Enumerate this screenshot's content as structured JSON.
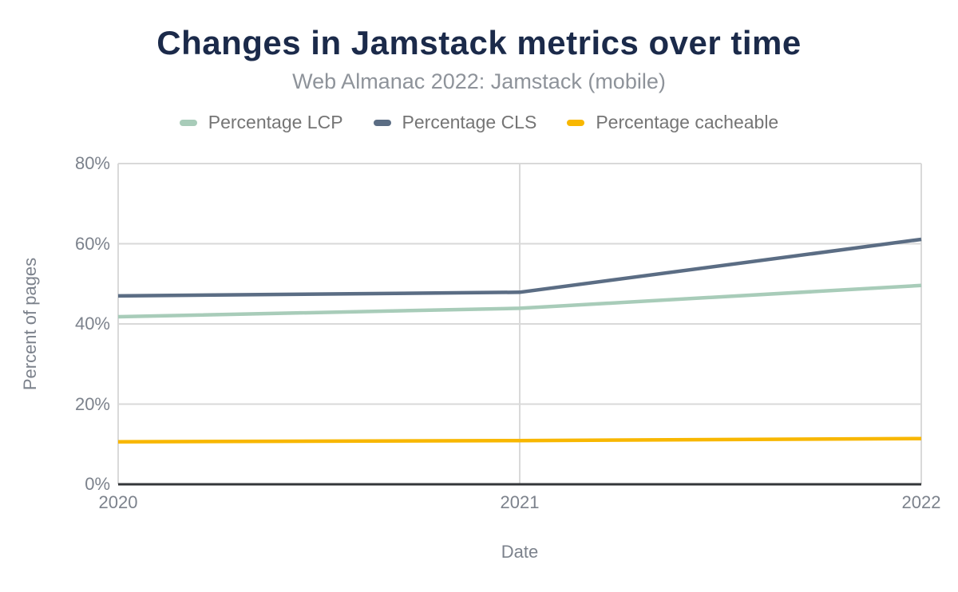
{
  "chart_data": {
    "type": "line",
    "title": "Changes in Jamstack metrics over time",
    "subtitle": "Web Almanac 2022: Jamstack (mobile)",
    "xlabel": "Date",
    "ylabel": "Percent of pages",
    "x": [
      "2020",
      "2021",
      "2022"
    ],
    "y_tick_labels": [
      "0%",
      "20%",
      "40%",
      "60%",
      "80%"
    ],
    "y_tick_values": [
      0,
      20,
      40,
      60,
      80
    ],
    "ylim": [
      0,
      80
    ],
    "grid": true,
    "legend_position": "top",
    "series": [
      {
        "name": "Percentage LCP",
        "color": "#a8ccb9",
        "values": [
          41.8,
          43.9,
          49.6
        ]
      },
      {
        "name": "Percentage CLS",
        "color": "#5b6d84",
        "values": [
          47.0,
          47.9,
          61.1
        ]
      },
      {
        "name": "Percentage cacheable",
        "color": "#f8b700",
        "values": [
          10.6,
          10.9,
          11.4
        ]
      }
    ]
  },
  "colors": {
    "title": "#1b2a4a",
    "subtitle": "#8e939a",
    "axis_text": "#7c828c",
    "legend_text": "#757575",
    "grid": "#d9d9d9",
    "axis_line": "#333639",
    "background": "#ffffff"
  }
}
